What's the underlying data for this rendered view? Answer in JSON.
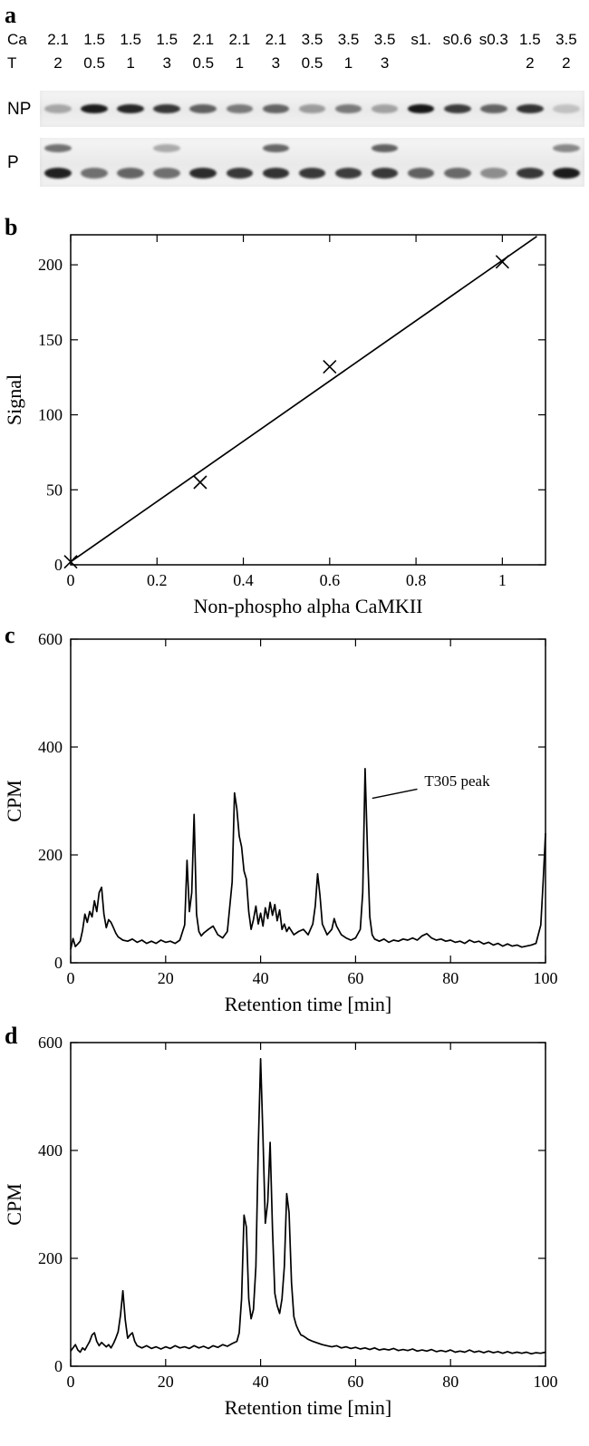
{
  "figure": {
    "panel_a": {
      "label": "a",
      "row_ca_label": "Ca",
      "row_t_label": "T",
      "ca_values": [
        "2.1",
        "1.5",
        "1.5",
        "1.5",
        "2.1",
        "2.1",
        "2.1",
        "3.5",
        "3.5",
        "3.5",
        "s1.",
        "s0.6",
        "s0.3",
        "1.5",
        "3.5"
      ],
      "t_values": [
        "2",
        "0.5",
        "1",
        "3",
        "0.5",
        "1",
        "3",
        "0.5",
        "1",
        "3",
        "",
        "",
        "",
        "2",
        "2"
      ],
      "np_label": "NP",
      "p_label": "P",
      "np_band_intensities": [
        0.3,
        0.92,
        0.88,
        0.8,
        0.62,
        0.5,
        0.6,
        0.35,
        0.5,
        0.32,
        0.95,
        0.78,
        0.6,
        0.82,
        0.18
      ],
      "p_band_intensities": [
        0.9,
        0.55,
        0.6,
        0.55,
        0.85,
        0.8,
        0.82,
        0.8,
        0.78,
        0.8,
        0.62,
        0.58,
        0.42,
        0.8,
        0.92
      ],
      "p_upper_band_intensities": [
        0.55,
        0,
        0,
        0.3,
        0,
        0,
        0.6,
        0,
        0,
        0.62,
        0,
        0,
        0,
        0,
        0.45
      ]
    },
    "panel_b": {
      "label": "b"
    },
    "panel_c": {
      "label": "c"
    },
    "panel_d": {
      "label": "d"
    }
  },
  "chart_data": [
    {
      "id": "b",
      "type": "scatter",
      "title": "",
      "xlabel": "Non-phospho alpha CaMKII",
      "ylabel": "Signal",
      "xlim": [
        0,
        1.1
      ],
      "ylim": [
        0,
        220
      ],
      "xticks": [
        0,
        0.2,
        0.4,
        0.6,
        0.8,
        1
      ],
      "yticks": [
        0,
        50,
        100,
        150,
        200
      ],
      "marker": "x",
      "points": [
        [
          0,
          2
        ],
        [
          0.3,
          55
        ],
        [
          0.6,
          132
        ],
        [
          1,
          202
        ]
      ],
      "fit_line": {
        "x1": 0,
        "y1": 2,
        "x2": 1.08,
        "y2": 219
      }
    },
    {
      "id": "c",
      "type": "line",
      "title": "",
      "xlabel": "Retention time [min]",
      "ylabel": "CPM",
      "xlim": [
        0,
        100
      ],
      "ylim": [
        0,
        600
      ],
      "xticks": [
        0,
        20,
        40,
        60,
        80,
        100
      ],
      "yticks": [
        0,
        200,
        400,
        600
      ],
      "annotation": {
        "text": "T305 peak",
        "text_xy": [
          74.5,
          328
        ],
        "line": [
          [
            73,
            322
          ],
          [
            63.5,
            305
          ]
        ]
      },
      "points": [
        [
          0,
          25
        ],
        [
          0.5,
          45
        ],
        [
          1,
          30
        ],
        [
          1.5,
          35
        ],
        [
          2,
          40
        ],
        [
          2.5,
          60
        ],
        [
          3,
          90
        ],
        [
          3.5,
          75
        ],
        [
          4,
          95
        ],
        [
          4.5,
          85
        ],
        [
          5,
          115
        ],
        [
          5.5,
          95
        ],
        [
          6,
          130
        ],
        [
          6.5,
          140
        ],
        [
          7,
          90
        ],
        [
          7.5,
          65
        ],
        [
          8,
          80
        ],
        [
          8.5,
          75
        ],
        [
          9,
          65
        ],
        [
          9.5,
          55
        ],
        [
          10,
          48
        ],
        [
          11,
          42
        ],
        [
          12,
          40
        ],
        [
          13,
          44
        ],
        [
          14,
          38
        ],
        [
          15,
          42
        ],
        [
          16,
          36
        ],
        [
          17,
          40
        ],
        [
          18,
          36
        ],
        [
          19,
          42
        ],
        [
          20,
          38
        ],
        [
          21,
          40
        ],
        [
          22,
          36
        ],
        [
          23,
          42
        ],
        [
          24,
          70
        ],
        [
          24.5,
          190
        ],
        [
          25,
          95
        ],
        [
          25.5,
          130
        ],
        [
          26,
          275
        ],
        [
          26.5,
          90
        ],
        [
          27,
          58
        ],
        [
          27.5,
          50
        ],
        [
          28,
          55
        ],
        [
          29,
          62
        ],
        [
          30,
          68
        ],
        [
          31,
          52
        ],
        [
          32,
          46
        ],
        [
          33,
          58
        ],
        [
          34,
          150
        ],
        [
          34.5,
          315
        ],
        [
          35,
          285
        ],
        [
          35.5,
          235
        ],
        [
          36,
          215
        ],
        [
          36.5,
          170
        ],
        [
          37,
          155
        ],
        [
          37.5,
          95
        ],
        [
          38,
          62
        ],
        [
          38.5,
          80
        ],
        [
          39,
          105
        ],
        [
          39.5,
          72
        ],
        [
          40,
          92
        ],
        [
          40.5,
          68
        ],
        [
          41,
          102
        ],
        [
          41.5,
          82
        ],
        [
          42,
          112
        ],
        [
          42.5,
          88
        ],
        [
          43,
          108
        ],
        [
          43.5,
          78
        ],
        [
          44,
          98
        ],
        [
          44.5,
          62
        ],
        [
          45,
          72
        ],
        [
          45.5,
          58
        ],
        [
          46,
          66
        ],
        [
          47,
          52
        ],
        [
          48,
          58
        ],
        [
          49,
          62
        ],
        [
          50,
          52
        ],
        [
          51,
          72
        ],
        [
          51.5,
          105
        ],
        [
          52,
          165
        ],
        [
          52.5,
          125
        ],
        [
          53,
          72
        ],
        [
          54,
          52
        ],
        [
          55,
          62
        ],
        [
          55.5,
          82
        ],
        [
          56,
          68
        ],
        [
          57,
          52
        ],
        [
          58,
          46
        ],
        [
          59,
          42
        ],
        [
          60,
          46
        ],
        [
          61,
          62
        ],
        [
          61.5,
          130
        ],
        [
          62,
          360
        ],
        [
          62.5,
          210
        ],
        [
          63,
          85
        ],
        [
          63.5,
          52
        ],
        [
          64,
          44
        ],
        [
          65,
          40
        ],
        [
          66,
          44
        ],
        [
          67,
          38
        ],
        [
          68,
          42
        ],
        [
          69,
          40
        ],
        [
          70,
          44
        ],
        [
          71,
          42
        ],
        [
          72,
          46
        ],
        [
          73,
          42
        ],
        [
          74,
          50
        ],
        [
          75,
          54
        ],
        [
          76,
          46
        ],
        [
          77,
          42
        ],
        [
          78,
          44
        ],
        [
          79,
          40
        ],
        [
          80,
          42
        ],
        [
          81,
          38
        ],
        [
          82,
          40
        ],
        [
          83,
          36
        ],
        [
          84,
          42
        ],
        [
          85,
          38
        ],
        [
          86,
          40
        ],
        [
          87,
          35
        ],
        [
          88,
          38
        ],
        [
          89,
          33
        ],
        [
          90,
          36
        ],
        [
          91,
          31
        ],
        [
          92,
          35
        ],
        [
          93,
          31
        ],
        [
          94,
          33
        ],
        [
          95,
          29
        ],
        [
          96,
          31
        ],
        [
          97,
          33
        ],
        [
          98,
          36
        ],
        [
          99,
          70
        ],
        [
          99.5,
          150
        ],
        [
          100,
          240
        ]
      ]
    },
    {
      "id": "d",
      "type": "line",
      "title": "",
      "xlabel": "Retention time [min]",
      "ylabel": "CPM",
      "xlim": [
        0,
        100
      ],
      "ylim": [
        0,
        600
      ],
      "xticks": [
        0,
        20,
        40,
        60,
        80,
        100
      ],
      "yticks": [
        0,
        200,
        400,
        600
      ],
      "points": [
        [
          0,
          28
        ],
        [
          1,
          40
        ],
        [
          1.5,
          30
        ],
        [
          2,
          26
        ],
        [
          2.5,
          34
        ],
        [
          3,
          30
        ],
        [
          3.5,
          38
        ],
        [
          4,
          46
        ],
        [
          4.5,
          58
        ],
        [
          5,
          62
        ],
        [
          5.5,
          46
        ],
        [
          6,
          38
        ],
        [
          6.5,
          44
        ],
        [
          7,
          40
        ],
        [
          7.5,
          36
        ],
        [
          8,
          40
        ],
        [
          8.5,
          34
        ],
        [
          9,
          42
        ],
        [
          9.5,
          52
        ],
        [
          10,
          64
        ],
        [
          10.5,
          95
        ],
        [
          11,
          140
        ],
        [
          11.5,
          85
        ],
        [
          12,
          52
        ],
        [
          12.5,
          58
        ],
        [
          13,
          62
        ],
        [
          13.5,
          46
        ],
        [
          14,
          38
        ],
        [
          15,
          34
        ],
        [
          16,
          38
        ],
        [
          17,
          33
        ],
        [
          18,
          36
        ],
        [
          19,
          32
        ],
        [
          20,
          36
        ],
        [
          21,
          33
        ],
        [
          22,
          38
        ],
        [
          23,
          34
        ],
        [
          24,
          36
        ],
        [
          25,
          33
        ],
        [
          26,
          38
        ],
        [
          27,
          34
        ],
        [
          28,
          37
        ],
        [
          29,
          33
        ],
        [
          30,
          38
        ],
        [
          31,
          35
        ],
        [
          32,
          40
        ],
        [
          33,
          37
        ],
        [
          34,
          42
        ],
        [
          35,
          46
        ],
        [
          35.5,
          62
        ],
        [
          36,
          125
        ],
        [
          36.5,
          280
        ],
        [
          37,
          258
        ],
        [
          37.5,
          125
        ],
        [
          38,
          88
        ],
        [
          38.5,
          105
        ],
        [
          39,
          185
        ],
        [
          39.5,
          405
        ],
        [
          40,
          570
        ],
        [
          40.5,
          425
        ],
        [
          41,
          265
        ],
        [
          41.5,
          305
        ],
        [
          42,
          415
        ],
        [
          42.5,
          255
        ],
        [
          43,
          135
        ],
        [
          43.5,
          112
        ],
        [
          44,
          98
        ],
        [
          44.5,
          125
        ],
        [
          45,
          185
        ],
        [
          45.5,
          320
        ],
        [
          46,
          285
        ],
        [
          46.5,
          155
        ],
        [
          47,
          92
        ],
        [
          47.5,
          76
        ],
        [
          48,
          66
        ],
        [
          48.5,
          58
        ],
        [
          49,
          56
        ],
        [
          50,
          50
        ],
        [
          51,
          46
        ],
        [
          52,
          43
        ],
        [
          53,
          40
        ],
        [
          54,
          38
        ],
        [
          55,
          36
        ],
        [
          56,
          38
        ],
        [
          57,
          34
        ],
        [
          58,
          36
        ],
        [
          59,
          33
        ],
        [
          60,
          35
        ],
        [
          61,
          32
        ],
        [
          62,
          34
        ],
        [
          63,
          31
        ],
        [
          64,
          34
        ],
        [
          65,
          30
        ],
        [
          66,
          32
        ],
        [
          67,
          30
        ],
        [
          68,
          33
        ],
        [
          69,
          29
        ],
        [
          70,
          31
        ],
        [
          71,
          29
        ],
        [
          72,
          32
        ],
        [
          73,
          28
        ],
        [
          74,
          30
        ],
        [
          75,
          28
        ],
        [
          76,
          31
        ],
        [
          77,
          27
        ],
        [
          78,
          29
        ],
        [
          79,
          27
        ],
        [
          80,
          30
        ],
        [
          81,
          26
        ],
        [
          82,
          28
        ],
        [
          83,
          26
        ],
        [
          84,
          30
        ],
        [
          85,
          26
        ],
        [
          86,
          28
        ],
        [
          87,
          25
        ],
        [
          88,
          28
        ],
        [
          89,
          25
        ],
        [
          90,
          27
        ],
        [
          91,
          24
        ],
        [
          92,
          27
        ],
        [
          93,
          24
        ],
        [
          94,
          26
        ],
        [
          95,
          24
        ],
        [
          96,
          26
        ],
        [
          97,
          23
        ],
        [
          98,
          25
        ],
        [
          99,
          24
        ],
        [
          100,
          26
        ]
      ]
    }
  ]
}
